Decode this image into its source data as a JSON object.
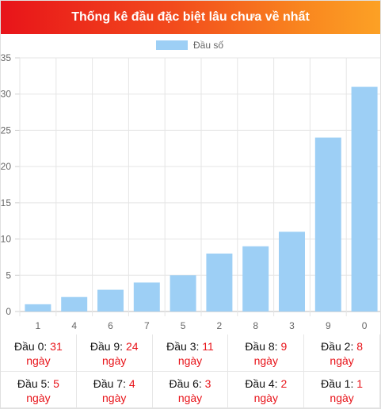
{
  "header": {
    "title": "Thống kê đầu đặc biệt lâu chưa về nhất"
  },
  "chart_data": {
    "type": "bar",
    "categories": [
      "1",
      "4",
      "6",
      "7",
      "5",
      "2",
      "8",
      "3",
      "9",
      "0"
    ],
    "series": [
      {
        "name": "Đầu số",
        "values": [
          1,
          2,
          3,
          4,
          5,
          8,
          9,
          11,
          24,
          31
        ],
        "color": "#9dcff5"
      }
    ],
    "ylim": [
      0,
      35
    ],
    "yticks": [
      0,
      5,
      10,
      15,
      20,
      25,
      30,
      35
    ],
    "grid": true,
    "legend": "top-center"
  },
  "stats": {
    "unit": "ngày",
    "items": [
      {
        "label": "Đầu 0:",
        "value": "31"
      },
      {
        "label": "Đầu 9:",
        "value": "24"
      },
      {
        "label": "Đầu 3:",
        "value": "11"
      },
      {
        "label": "Đầu 8:",
        "value": "9"
      },
      {
        "label": "Đầu 2:",
        "value": "8"
      },
      {
        "label": "Đầu 5:",
        "value": "5"
      },
      {
        "label": "Đầu 7:",
        "value": "4"
      },
      {
        "label": "Đầu 6:",
        "value": "3"
      },
      {
        "label": "Đầu 4:",
        "value": "2"
      },
      {
        "label": "Đầu 1:",
        "value": "1"
      }
    ]
  }
}
